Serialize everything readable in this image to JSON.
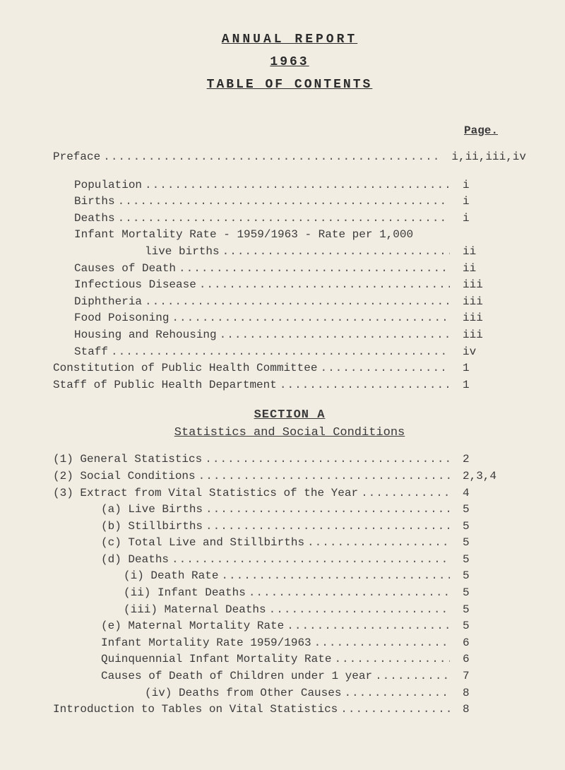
{
  "header": {
    "title": "ANNUAL REPORT",
    "year": "1963",
    "subtitle": "TABLE OF CONTENTS",
    "page_label": "Page."
  },
  "part1": [
    {
      "label": "Preface",
      "indent": 0,
      "page": "i,ii,iii,iv",
      "spacer_after": true
    },
    {
      "label": "Population",
      "indent": 1,
      "page": "i"
    },
    {
      "label": "Births",
      "indent": 1,
      "page": "i"
    },
    {
      "label": "Deaths",
      "indent": 1,
      "page": "i"
    },
    {
      "label": "Infant Mortality Rate - 1959/1963 - Rate per 1,000",
      "indent": 1,
      "page": "",
      "no_dots": true
    },
    {
      "label": "live births",
      "indent": 4,
      "page": "ii"
    },
    {
      "label": "Causes of Death",
      "indent": 1,
      "page": "ii"
    },
    {
      "label": "Infectious Disease",
      "indent": 1,
      "page": "iii"
    },
    {
      "label": "Diphtheria",
      "indent": 1,
      "page": "iii"
    },
    {
      "label": "Food Poisoning",
      "indent": 1,
      "page": "iii"
    },
    {
      "label": "Housing and Rehousing",
      "indent": 1,
      "page": "iii"
    },
    {
      "label": "Staff",
      "indent": 1,
      "page": "iv"
    },
    {
      "label": "Constitution of Public Health Committee",
      "indent": 0,
      "page": "1"
    },
    {
      "label": "Staff of Public Health Department",
      "indent": 0,
      "page": "1"
    }
  ],
  "sectionA": {
    "heading": "SECTION A",
    "subtitle": "Statistics and Social Conditions",
    "entries": [
      {
        "label": "(1) General Statistics",
        "indent": 0,
        "page": "2"
      },
      {
        "label": "(2) Social Conditions",
        "indent": 0,
        "page": "2,3,4"
      },
      {
        "label": "(3) Extract from Vital Statistics of the Year",
        "indent": 0,
        "page": "4"
      },
      {
        "label": "(a) Live Births",
        "indent": 2,
        "page": "5"
      },
      {
        "label": "(b) Stillbirths",
        "indent": 2,
        "page": "5"
      },
      {
        "label": "(c) Total Live and Stillbirths",
        "indent": 2,
        "page": "5"
      },
      {
        "label": "(d) Deaths",
        "indent": 2,
        "page": "5"
      },
      {
        "label": "(i) Death Rate",
        "indent": 3,
        "page": "5"
      },
      {
        "label": "(ii) Infant Deaths",
        "indent": 3,
        "page": "5"
      },
      {
        "label": "(iii) Maternal Deaths",
        "indent": 3,
        "page": "5"
      },
      {
        "label": "(e) Maternal Mortality Rate",
        "indent": 2,
        "page": "5"
      },
      {
        "label": "Infant Mortality Rate 1959/1963",
        "indent": 2,
        "page": "6"
      },
      {
        "label": "Quinquennial Infant Mortality Rate",
        "indent": 2,
        "page": "6"
      },
      {
        "label": "Causes of Death of Children under 1 year",
        "indent": 2,
        "page": "7"
      },
      {
        "label": "(iv) Deaths from Other Causes",
        "indent": 4,
        "page": "8"
      },
      {
        "label": "Introduction to Tables on Vital Statistics",
        "indent": 0,
        "page": "8"
      }
    ]
  },
  "style": {
    "background": "#f2ede3",
    "text_color": "#3a3a3a",
    "font": "Courier New",
    "base_fontsize": 16,
    "title_fontsize": 18,
    "letter_spacing_title": 4
  }
}
